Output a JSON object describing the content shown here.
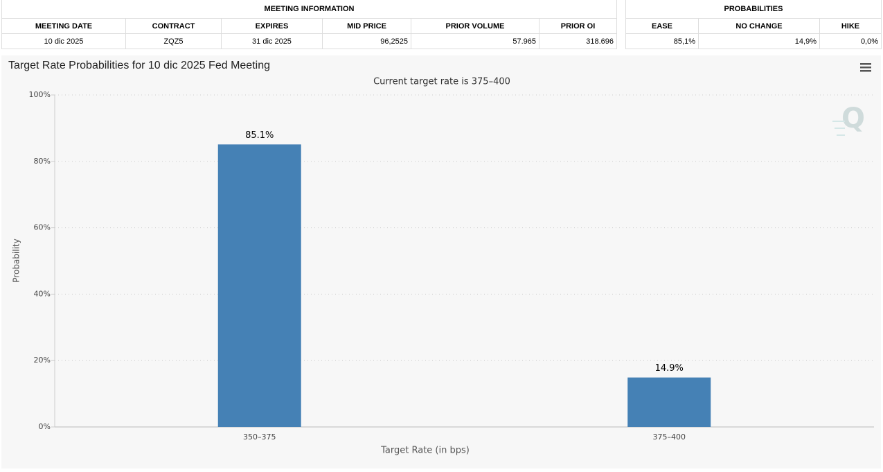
{
  "meeting_info": {
    "title": "MEETING INFORMATION",
    "columns": [
      "MEETING DATE",
      "CONTRACT",
      "EXPIRES",
      "MID PRICE",
      "PRIOR VOLUME",
      "PRIOR OI"
    ],
    "row": [
      "10 dic 2025",
      "ZQZ5",
      "31 dic 2025",
      "96,2525",
      "57.965",
      "318.696"
    ]
  },
  "probabilities": {
    "title": "PROBABILITIES",
    "columns": [
      "EASE",
      "NO CHANGE",
      "HIKE"
    ],
    "row": [
      "85,1%",
      "14,9%",
      "0,0%"
    ]
  },
  "chart_data": {
    "type": "bar",
    "title": "Target Rate Probabilities for 10 dic 2025 Fed Meeting",
    "subtitle": "Current target rate is 375–400",
    "x_label": "Target Rate (in bps)",
    "y_label": "Probability",
    "categories": [
      "350–375",
      "375–400"
    ],
    "values": [
      85.1,
      14.9
    ],
    "value_labels": [
      "85.1%",
      "14.9%"
    ],
    "color": "#4581b5",
    "ylim": [
      0,
      100
    ],
    "yticks": [
      {
        "value": 0,
        "label": "0%"
      },
      {
        "value": 20,
        "label": "20%"
      },
      {
        "value": 40,
        "label": "40%"
      },
      {
        "value": 60,
        "label": "60%"
      },
      {
        "value": 80,
        "label": "80%"
      },
      {
        "value": 100,
        "label": "100%"
      }
    ],
    "grid": true
  }
}
